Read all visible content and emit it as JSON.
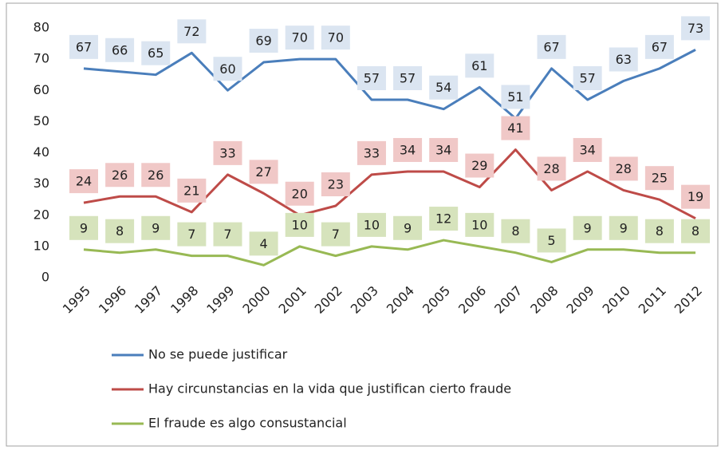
{
  "chart_data": {
    "type": "line",
    "categories": [
      "1995",
      "1996",
      "1997",
      "1998",
      "1999",
      "2000",
      "2001",
      "2002",
      "2003",
      "2004",
      "2005",
      "2006",
      "2007",
      "2008",
      "2009",
      "2010",
      "2011",
      "2012"
    ],
    "series": [
      {
        "name": "No se puede justificar",
        "color": "#4a7ebb",
        "label_fill": "#dbe5f1",
        "values": [
          67,
          66,
          65,
          72,
          60,
          69,
          70,
          70,
          57,
          57,
          54,
          61,
          51,
          67,
          57,
          63,
          67,
          73
        ]
      },
      {
        "name": "Hay circunstancias en la vida que justifican cierto fraude",
        "color": "#be4b48",
        "label_fill": "#f0c8c7",
        "values": [
          24,
          26,
          26,
          21,
          33,
          27,
          20,
          23,
          33,
          34,
          34,
          29,
          41,
          28,
          34,
          28,
          25,
          19
        ]
      },
      {
        "name": "El fraude es algo consustancial",
        "color": "#98b954",
        "label_fill": "#d6e3bc",
        "values": [
          9,
          8,
          9,
          7,
          7,
          4,
          10,
          7,
          10,
          9,
          12,
          10,
          8,
          5,
          9,
          9,
          8,
          8
        ]
      }
    ],
    "ylim": [
      0,
      80
    ],
    "yticks": [
      0,
      10,
      20,
      30,
      40,
      50,
      60,
      70,
      80
    ],
    "grid": false
  }
}
